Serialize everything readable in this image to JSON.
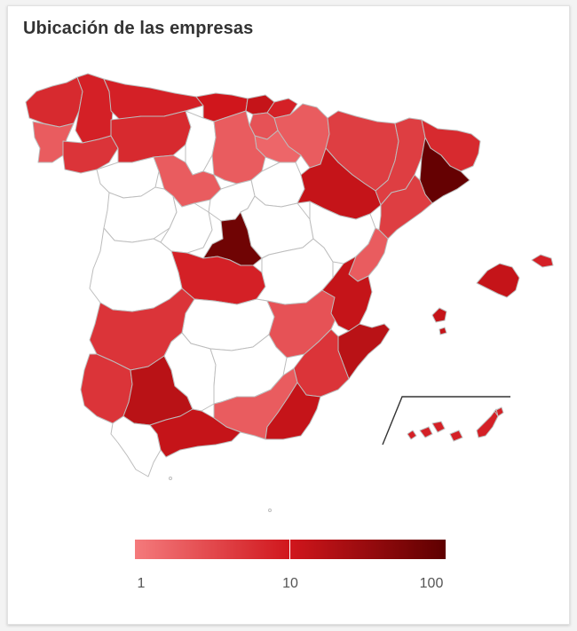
{
  "title": "Ubicación de las empresas",
  "legend": {
    "scale": "log",
    "labels": [
      "1",
      "10",
      "100"
    ],
    "colors": {
      "min": "#f47a7c",
      "mid": "#d0161c",
      "max": "#5e0000",
      "empty": "#ffffff",
      "border": "#bdbdbd"
    }
  },
  "regions": [
    {
      "name": "A Coruña",
      "level": 0.4
    },
    {
      "name": "Lugo",
      "level": 0.45
    },
    {
      "name": "Pontevedra",
      "level": 0.15
    },
    {
      "name": "Ourense",
      "level": 0.35
    },
    {
      "name": "Asturias",
      "level": 0.45
    },
    {
      "name": "Cantabria",
      "level": 0.5
    },
    {
      "name": "Bizkaia",
      "level": 0.55
    },
    {
      "name": "Gipuzkoa",
      "level": 0.45
    },
    {
      "name": "Álava",
      "level": 0.2
    },
    {
      "name": "Navarra",
      "level": 0.15
    },
    {
      "name": "La Rioja",
      "level": 0.1
    },
    {
      "name": "León",
      "level": 0.4
    },
    {
      "name": "Palencia",
      "level": null
    },
    {
      "name": "Burgos",
      "level": 0.15
    },
    {
      "name": "Zamora",
      "level": null
    },
    {
      "name": "Valladolid",
      "level": 0.15
    },
    {
      "name": "Soria",
      "level": null
    },
    {
      "name": "Salamanca",
      "level": null
    },
    {
      "name": "Ávila",
      "level": null
    },
    {
      "name": "Segovia",
      "level": null
    },
    {
      "name": "Madrid",
      "level": 0.92
    },
    {
      "name": "Guadalajara",
      "level": null
    },
    {
      "name": "Huesca",
      "level": 0.3
    },
    {
      "name": "Zaragoza",
      "level": 0.55
    },
    {
      "name": "Teruel",
      "level": null
    },
    {
      "name": "Lleida",
      "level": 0.3
    },
    {
      "name": "Girona",
      "level": 0.4
    },
    {
      "name": "Barcelona",
      "level": 0.97
    },
    {
      "name": "Tarragona",
      "level": 0.3
    },
    {
      "name": "Castellón",
      "level": 0.15
    },
    {
      "name": "Valencia",
      "level": 0.55
    },
    {
      "name": "Alicante",
      "level": 0.6
    },
    {
      "name": "Cáceres",
      "level": null
    },
    {
      "name": "Badajoz",
      "level": 0.35
    },
    {
      "name": "Toledo",
      "level": 0.45
    },
    {
      "name": "Cuenca",
      "level": null
    },
    {
      "name": "Ciudad Real",
      "level": null
    },
    {
      "name": "Albacete",
      "level": 0.2
    },
    {
      "name": "Murcia",
      "level": 0.35
    },
    {
      "name": "Huelva",
      "level": 0.35
    },
    {
      "name": "Sevilla",
      "level": 0.6
    },
    {
      "name": "Córdoba",
      "level": null
    },
    {
      "name": "Jaén",
      "level": null
    },
    {
      "name": "Granada",
      "level": 0.15
    },
    {
      "name": "Almería",
      "level": 0.55
    },
    {
      "name": "Cádiz",
      "level": null
    },
    {
      "name": "Málaga",
      "level": 0.55
    },
    {
      "name": "Mallorca",
      "level": 0.55
    },
    {
      "name": "Menorca",
      "level": 0.45
    },
    {
      "name": "Ibiza",
      "level": 0.55
    },
    {
      "name": "Formentera",
      "level": 0.55
    },
    {
      "name": "Canarias",
      "level": 0.45
    }
  ]
}
